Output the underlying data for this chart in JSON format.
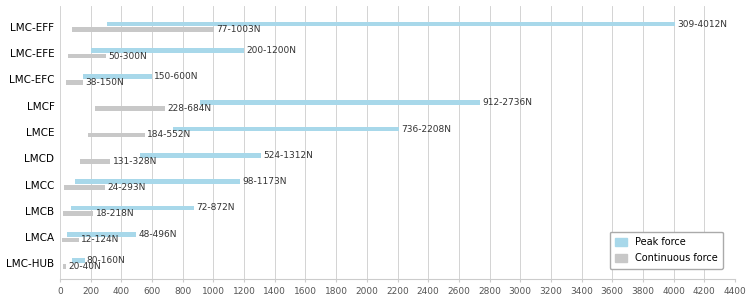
{
  "categories": [
    "LMC-HUB",
    "LMCA",
    "LMCB",
    "LMCC",
    "LMCD",
    "LMCE",
    "LMCF",
    "LMC-EFC",
    "LMC-EFE",
    "LMC-EFF"
  ],
  "peak_force": {
    "start": [
      80,
      48,
      72,
      98,
      524,
      736,
      912,
      150,
      200,
      309
    ],
    "end": [
      160,
      496,
      872,
      1173,
      1312,
      2208,
      2736,
      600,
      1200,
      4012
    ],
    "labels": [
      "80-160N",
      "48-496N",
      "72-872N",
      "98-1173N",
      "524-1312N",
      "736-2208N",
      "912-2736N",
      "150-600N",
      "200-1200N",
      "309-4012N"
    ]
  },
  "cont_force": {
    "start": [
      20,
      12,
      18,
      24,
      131,
      184,
      228,
      38,
      50,
      77
    ],
    "end": [
      40,
      124,
      218,
      293,
      328,
      552,
      684,
      150,
      300,
      1003
    ],
    "labels": [
      "20-40N",
      "12-124N",
      "18-218N",
      "24-293N",
      "131-328N",
      "184-552N",
      "228-684N",
      "38-150N",
      "50-300N",
      "77-1003N"
    ]
  },
  "peak_color": "#A8D8EA",
  "cont_color": "#C8C8C8",
  "bar_height": 0.18,
  "bar_gap": 0.04,
  "xlim": [
    0,
    4400
  ],
  "xticks": [
    0,
    200,
    400,
    600,
    800,
    1000,
    1200,
    1400,
    1600,
    1800,
    2000,
    2200,
    2400,
    2600,
    2800,
    3000,
    3200,
    3400,
    3600,
    3800,
    4000,
    4200,
    4400
  ],
  "grid_color": "#CCCCCC",
  "background_color": "#FFFFFF",
  "label_fontsize": 6.5,
  "tick_fontsize": 6.5,
  "category_fontsize": 7.5,
  "legend_peak": "Peak force",
  "legend_cont": "Continuous force"
}
